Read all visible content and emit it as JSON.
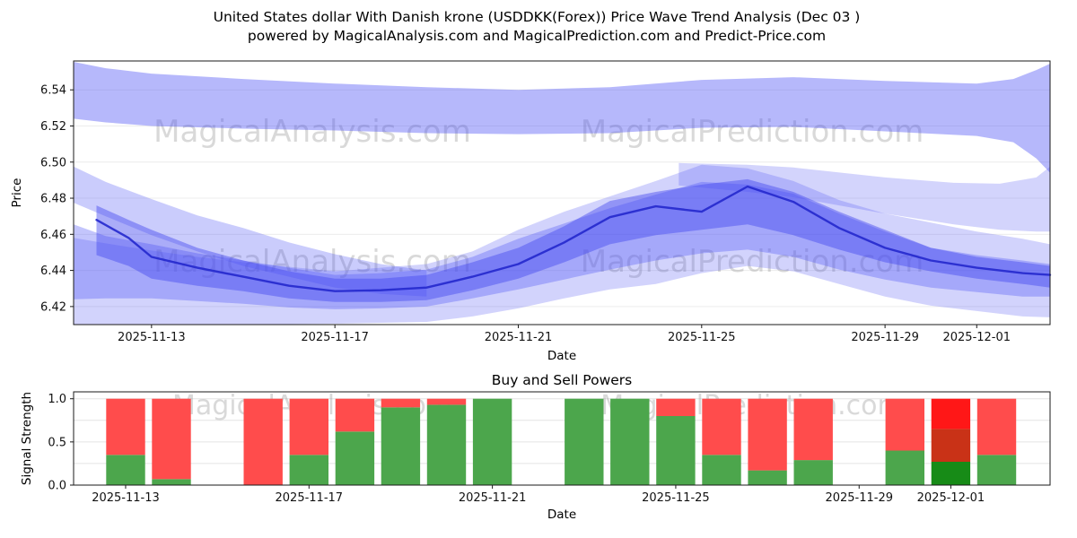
{
  "title": {
    "line1": "United States dollar With Danish krone (USDDKK(Forex)) Price Wave Trend Analysis (Dec 03 )",
    "line2": "powered by MagicalAnalysis.com and MagicalPrediction.com and Predict-Price.com"
  },
  "watermarks": {
    "left": "MagicalAnalysis.com",
    "right": "MagicalPrediction.com"
  },
  "chart_data": [
    {
      "type": "area",
      "name": "price-wave-trend",
      "xlabel": "Date",
      "ylabel": "Price",
      "x_unit": "days since 2025-11-13",
      "x_domain": [
        -1.7,
        19.6
      ],
      "y_domain": [
        6.41,
        6.556
      ],
      "grid": true,
      "x_ticks": [
        {
          "day": 0,
          "label": "2025-11-13"
        },
        {
          "day": 4,
          "label": "2025-11-17"
        },
        {
          "day": 8,
          "label": "2025-11-21"
        },
        {
          "day": 12,
          "label": "2025-11-25"
        },
        {
          "day": 16,
          "label": "2025-11-29"
        },
        {
          "day": 18,
          "label": "2025-12-01"
        }
      ],
      "y_ticks": [
        {
          "v": 6.42,
          "label": "6.42"
        },
        {
          "v": 6.44,
          "label": "6.44"
        },
        {
          "v": 6.46,
          "label": "6.46"
        },
        {
          "v": 6.48,
          "label": "6.48"
        },
        {
          "v": 6.5,
          "label": "6.50"
        },
        {
          "v": 6.52,
          "label": "6.52"
        },
        {
          "v": 6.54,
          "label": "6.54"
        }
      ],
      "bands": [
        {
          "name": "upper-forecast-band",
          "color": "rgba(80,85,245,0.42)",
          "points": [
            [
              -1.7,
              6.524,
              6.5555
            ],
            [
              -1,
              6.522,
              6.552
            ],
            [
              0,
              6.52,
              6.549
            ],
            [
              2,
              6.5185,
              6.546
            ],
            [
              4,
              6.5175,
              6.5435
            ],
            [
              6,
              6.516,
              6.5415
            ],
            [
              8,
              6.5155,
              6.54
            ],
            [
              10,
              6.516,
              6.5415
            ],
            [
              12,
              6.519,
              6.5455
            ],
            [
              14,
              6.5195,
              6.547
            ],
            [
              16,
              6.517,
              6.545
            ],
            [
              18,
              6.5145,
              6.5435
            ],
            [
              18.8,
              6.511,
              6.546
            ],
            [
              19.3,
              6.502,
              6.551
            ],
            [
              19.6,
              6.494,
              6.5545
            ]
          ]
        },
        {
          "name": "right-upper-streak",
          "color": "rgba(80,85,245,0.25)",
          "points": [
            [
              11.5,
              6.487,
              6.4995
            ],
            [
              13,
              6.4835,
              6.4985
            ],
            [
              14,
              6.4805,
              6.497
            ],
            [
              16,
              6.4715,
              6.4915
            ],
            [
              17.5,
              6.4655,
              6.4885
            ],
            [
              18.5,
              6.4625,
              6.488
            ],
            [
              19.3,
              6.4615,
              6.4915
            ],
            [
              19.6,
              6.4615,
              6.4975
            ]
          ]
        },
        {
          "name": "left-descending-band",
          "color": "rgba(80,85,245,0.30)",
          "points": [
            [
              -1.7,
              6.4775,
              6.4975
            ],
            [
              -1,
              6.47,
              6.489
            ],
            [
              0,
              6.4595,
              6.4795
            ],
            [
              1,
              6.4505,
              6.4705
            ],
            [
              2,
              6.4425,
              6.4635
            ],
            [
              3,
              6.4365,
              6.4555
            ],
            [
              4,
              6.4305,
              6.449
            ],
            [
              5,
              6.427,
              6.4435
            ],
            [
              6,
              6.4255,
              6.44
            ]
          ]
        },
        {
          "name": "outer-wave-envelope",
          "color": "rgba(80,85,245,0.26)",
          "points": [
            [
              -1.7,
              6.408,
              6.458
            ],
            [
              -1,
              6.408,
              6.455
            ],
            [
              0,
              6.4085,
              6.451
            ],
            [
              1,
              6.409,
              6.4475
            ],
            [
              2,
              6.41,
              6.4445
            ],
            [
              4,
              6.4105,
              6.4395
            ],
            [
              6,
              6.4115,
              6.4435
            ],
            [
              7,
              6.4145,
              6.4505
            ],
            [
              8,
              6.419,
              6.4625
            ],
            [
              9,
              6.4245,
              6.4725
            ],
            [
              10,
              6.4295,
              6.481
            ],
            [
              11,
              6.4325,
              6.4895
            ],
            [
              12,
              6.4385,
              6.4985
            ],
            [
              13,
              6.4425,
              6.4965
            ],
            [
              14,
              6.4395,
              6.4895
            ],
            [
              15,
              6.4325,
              6.479
            ],
            [
              16,
              6.4255,
              6.4715
            ],
            [
              17,
              6.4205,
              6.4665
            ],
            [
              18,
              6.4175,
              6.4615
            ],
            [
              19,
              6.4145,
              6.4575
            ],
            [
              19.6,
              6.414,
              6.4545
            ]
          ]
        },
        {
          "name": "middle-wave-band",
          "color": "rgba(80,85,245,0.34)",
          "points": [
            [
              -1.7,
              6.424,
              6.4655
            ],
            [
              -1,
              6.4245,
              6.459
            ],
            [
              0,
              6.4245,
              6.4545
            ],
            [
              1,
              6.423,
              6.4495
            ],
            [
              2,
              6.4215,
              6.4455
            ],
            [
              3,
              6.4195,
              6.4415
            ],
            [
              4,
              6.4185,
              6.4375
            ],
            [
              5,
              6.419,
              6.4385
            ],
            [
              6,
              6.42,
              6.4405
            ],
            [
              7,
              6.4245,
              6.4475
            ],
            [
              8,
              6.4295,
              6.4575
            ],
            [
              9,
              6.435,
              6.466
            ],
            [
              10,
              6.4405,
              6.4745
            ],
            [
              11,
              6.4455,
              6.482
            ],
            [
              12,
              6.4495,
              6.489
            ],
            [
              13,
              6.4515,
              6.4875
            ],
            [
              14,
              6.4475,
              6.4825
            ],
            [
              15,
              6.4405,
              6.4715
            ],
            [
              16,
              6.435,
              6.4615
            ],
            [
              17,
              6.4305,
              6.4525
            ],
            [
              18,
              6.428,
              6.4485
            ],
            [
              19,
              6.4255,
              6.4455
            ],
            [
              19.6,
              6.4255,
              6.4435
            ]
          ]
        },
        {
          "name": "core-wave-band",
          "color": "rgba(70,75,240,0.46)",
          "points": [
            [
              -1.2,
              6.4485,
              6.476
            ],
            [
              -0.5,
              6.4425,
              6.468
            ],
            [
              0,
              6.4355,
              6.4625
            ],
            [
              1,
              6.4315,
              6.4525
            ],
            [
              2,
              6.4285,
              6.4455
            ],
            [
              3,
              6.4245,
              6.4395
            ],
            [
              4,
              6.4225,
              6.4355
            ],
            [
              5,
              6.4225,
              6.4355
            ],
            [
              6,
              6.4235,
              6.4375
            ],
            [
              7,
              6.429,
              6.4445
            ],
            [
              8,
              6.4355,
              6.4525
            ],
            [
              9,
              6.4445,
              6.4645
            ],
            [
              10,
              6.4545,
              6.4785
            ],
            [
              11,
              6.4595,
              6.4835
            ],
            [
              12,
              6.4625,
              6.4875
            ],
            [
              13,
              6.4655,
              6.4905
            ],
            [
              14,
              6.4595,
              6.4835
            ],
            [
              15,
              6.4515,
              6.4725
            ],
            [
              16,
              6.4445,
              6.4625
            ],
            [
              17,
              6.4395,
              6.4525
            ],
            [
              18,
              6.4355,
              6.4475
            ],
            [
              19,
              6.4325,
              6.4445
            ],
            [
              19.6,
              6.4305,
              6.4425
            ]
          ]
        }
      ],
      "trend_line": {
        "color": "rgba(35,40,205,0.9)",
        "width": 2.4,
        "points": [
          [
            -1.2,
            6.468
          ],
          [
            -0.5,
            6.458
          ],
          [
            0,
            6.4475
          ],
          [
            1,
            6.4415
          ],
          [
            2,
            6.4365
          ],
          [
            3,
            6.4315
          ],
          [
            4,
            6.4285
          ],
          [
            5,
            6.429
          ],
          [
            6,
            6.4305
          ],
          [
            7,
            6.4365
          ],
          [
            8,
            6.4435
          ],
          [
            9,
            6.4555
          ],
          [
            10,
            6.4695
          ],
          [
            11,
            6.4755
          ],
          [
            12,
            6.4725
          ],
          [
            13,
            6.4865
          ],
          [
            14,
            6.478
          ],
          [
            15,
            6.4635
          ],
          [
            16,
            6.4525
          ],
          [
            17,
            6.4455
          ],
          [
            18,
            6.4415
          ],
          [
            19,
            6.4385
          ],
          [
            19.6,
            6.4375
          ]
        ]
      }
    },
    {
      "type": "bar",
      "name": "buy-sell-powers",
      "title": "Buy and Sell Powers",
      "xlabel": "Date",
      "ylabel": "Signal Strength",
      "x_domain": [
        -1.135,
        20.165
      ],
      "y_domain": [
        0,
        1.08
      ],
      "grid": true,
      "bar_width_days": 0.85,
      "x_ticks": [
        {
          "day": 0,
          "label": "2025-11-13"
        },
        {
          "day": 4,
          "label": "2025-11-17"
        },
        {
          "day": 8,
          "label": "2025-11-21"
        },
        {
          "day": 12,
          "label": "2025-11-25"
        },
        {
          "day": 16,
          "label": "2025-11-29"
        },
        {
          "day": 18,
          "label": "2025-12-01"
        }
      ],
      "y_ticks": [
        {
          "v": 0,
          "label": "0.0"
        },
        {
          "v": 0.5,
          "label": "0.5"
        },
        {
          "v": 1,
          "label": "1.0"
        }
      ],
      "palette": {
        "green": "#4ca64c",
        "red": "#ff4c4c",
        "dark_green": "#178b17",
        "dark_red": "#c93217",
        "bright_red": "#ff1717"
      },
      "bars": [
        {
          "date": "2025-11-13",
          "day": 0,
          "segments": [
            {
              "color": "green",
              "from": 0,
              "to": 0.35
            },
            {
              "color": "red",
              "from": 0.35,
              "to": 1.0
            }
          ]
        },
        {
          "date": "2025-11-14",
          "day": 1,
          "segments": [
            {
              "color": "green",
              "from": 0,
              "to": 0.07
            },
            {
              "color": "red",
              "from": 0.07,
              "to": 1.0
            }
          ]
        },
        {
          "date": "2025-11-16",
          "day": 3,
          "segments": [
            {
              "color": "red",
              "from": 0,
              "to": 1.0
            }
          ]
        },
        {
          "date": "2025-11-17",
          "day": 4,
          "segments": [
            {
              "color": "green",
              "from": 0,
              "to": 0.35
            },
            {
              "color": "red",
              "from": 0.35,
              "to": 1.0
            }
          ]
        },
        {
          "date": "2025-11-18",
          "day": 5,
          "segments": [
            {
              "color": "green",
              "from": 0,
              "to": 0.62
            },
            {
              "color": "red",
              "from": 0.62,
              "to": 1.0
            }
          ]
        },
        {
          "date": "2025-11-19",
          "day": 6,
          "segments": [
            {
              "color": "green",
              "from": 0,
              "to": 0.9
            },
            {
              "color": "red",
              "from": 0.9,
              "to": 1.0
            }
          ]
        },
        {
          "date": "2025-11-20",
          "day": 7,
          "segments": [
            {
              "color": "green",
              "from": 0,
              "to": 0.93
            },
            {
              "color": "red",
              "from": 0.93,
              "to": 1.0
            }
          ]
        },
        {
          "date": "2025-11-21",
          "day": 8,
          "segments": [
            {
              "color": "green",
              "from": 0,
              "to": 1.0
            }
          ]
        },
        {
          "date": "2025-11-23",
          "day": 10,
          "segments": [
            {
              "color": "green",
              "from": 0,
              "to": 1.0
            }
          ]
        },
        {
          "date": "2025-11-24",
          "day": 11,
          "segments": [
            {
              "color": "green",
              "from": 0,
              "to": 1.0
            }
          ]
        },
        {
          "date": "2025-11-25",
          "day": 12,
          "segments": [
            {
              "color": "green",
              "from": 0,
              "to": 0.8
            },
            {
              "color": "red",
              "from": 0.8,
              "to": 1.0
            }
          ]
        },
        {
          "date": "2025-11-26",
          "day": 13,
          "segments": [
            {
              "color": "green",
              "from": 0,
              "to": 0.35
            },
            {
              "color": "red",
              "from": 0.35,
              "to": 1.0
            }
          ]
        },
        {
          "date": "2025-11-27",
          "day": 14,
          "segments": [
            {
              "color": "green",
              "from": 0,
              "to": 0.17
            },
            {
              "color": "red",
              "from": 0.17,
              "to": 1.0
            }
          ]
        },
        {
          "date": "2025-11-28",
          "day": 15,
          "segments": [
            {
              "color": "green",
              "from": 0,
              "to": 0.29
            },
            {
              "color": "red",
              "from": 0.29,
              "to": 1.0
            }
          ]
        },
        {
          "date": "2025-11-30",
          "day": 17,
          "segments": [
            {
              "color": "green",
              "from": 0,
              "to": 0.4
            },
            {
              "color": "red",
              "from": 0.4,
              "to": 1.0
            }
          ]
        },
        {
          "date": "2025-12-01",
          "day": 18,
          "segments": [
            {
              "color": "dark_green",
              "from": 0,
              "to": 0.27
            },
            {
              "color": "dark_red",
              "from": 0.27,
              "to": 0.65
            },
            {
              "color": "bright_red",
              "from": 0.65,
              "to": 1.0
            }
          ]
        },
        {
          "date": "2025-12-02",
          "day": 19,
          "segments": [
            {
              "color": "green",
              "from": 0,
              "to": 0.35
            },
            {
              "color": "red",
              "from": 0.35,
              "to": 1.0
            }
          ]
        }
      ]
    }
  ]
}
